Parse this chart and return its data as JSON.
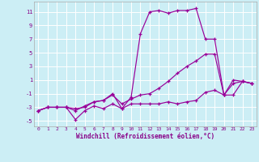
{
  "xlabel": "Windchill (Refroidissement éolien,°C)",
  "background_color": "#cceef5",
  "grid_color": "#aacccc",
  "line_color": "#990099",
  "x_ticks": [
    0,
    1,
    2,
    3,
    4,
    5,
    6,
    7,
    8,
    9,
    10,
    11,
    12,
    13,
    14,
    15,
    16,
    17,
    18,
    19,
    20,
    21,
    22,
    23
  ],
  "y_ticks": [
    -5,
    -3,
    -1,
    1,
    3,
    5,
    7,
    9,
    11
  ],
  "xlim": [
    -0.5,
    23.5
  ],
  "ylim": [
    -5.8,
    12.5
  ],
  "line1_x": [
    0,
    1,
    2,
    3,
    4,
    5,
    6,
    7,
    8,
    9,
    10,
    11,
    12,
    13,
    14,
    15,
    16,
    17,
    18,
    19,
    20,
    21,
    22,
    23
  ],
  "line1_y": [
    -3.5,
    -3.0,
    -3.0,
    -3.0,
    -4.8,
    -3.5,
    -2.8,
    -3.2,
    -2.5,
    -3.2,
    -2.5,
    -2.5,
    -2.5,
    -2.5,
    -2.2,
    -2.5,
    -2.2,
    -2.0,
    -0.8,
    -0.5,
    -1.2,
    -1.2,
    0.8,
    0.5
  ],
  "line2_x": [
    0,
    1,
    2,
    3,
    4,
    5,
    6,
    7,
    8,
    9,
    10,
    11,
    12,
    13,
    14,
    15,
    16,
    17,
    18,
    19,
    20,
    21,
    22,
    23
  ],
  "line2_y": [
    -3.5,
    -3.0,
    -3.0,
    -3.0,
    -3.5,
    -2.8,
    -2.2,
    -2.0,
    -1.2,
    -2.5,
    -1.8,
    -1.2,
    -1.0,
    -0.2,
    0.8,
    2.0,
    3.0,
    3.8,
    4.8,
    4.8,
    -1.2,
    0.5,
    0.8,
    0.5
  ],
  "line3_x": [
    0,
    1,
    2,
    3,
    4,
    5,
    6,
    7,
    8,
    9,
    10,
    11,
    12,
    13,
    14,
    15,
    16,
    17,
    18,
    19,
    20,
    21,
    22,
    23
  ],
  "line3_y": [
    -3.5,
    -3.0,
    -3.0,
    -3.0,
    -3.2,
    -3.0,
    -2.2,
    -2.0,
    -1.0,
    -3.2,
    -1.5,
    7.8,
    11.0,
    11.2,
    10.8,
    11.2,
    11.2,
    11.5,
    7.0,
    7.0,
    -1.2,
    1.0,
    0.8,
    0.5
  ]
}
